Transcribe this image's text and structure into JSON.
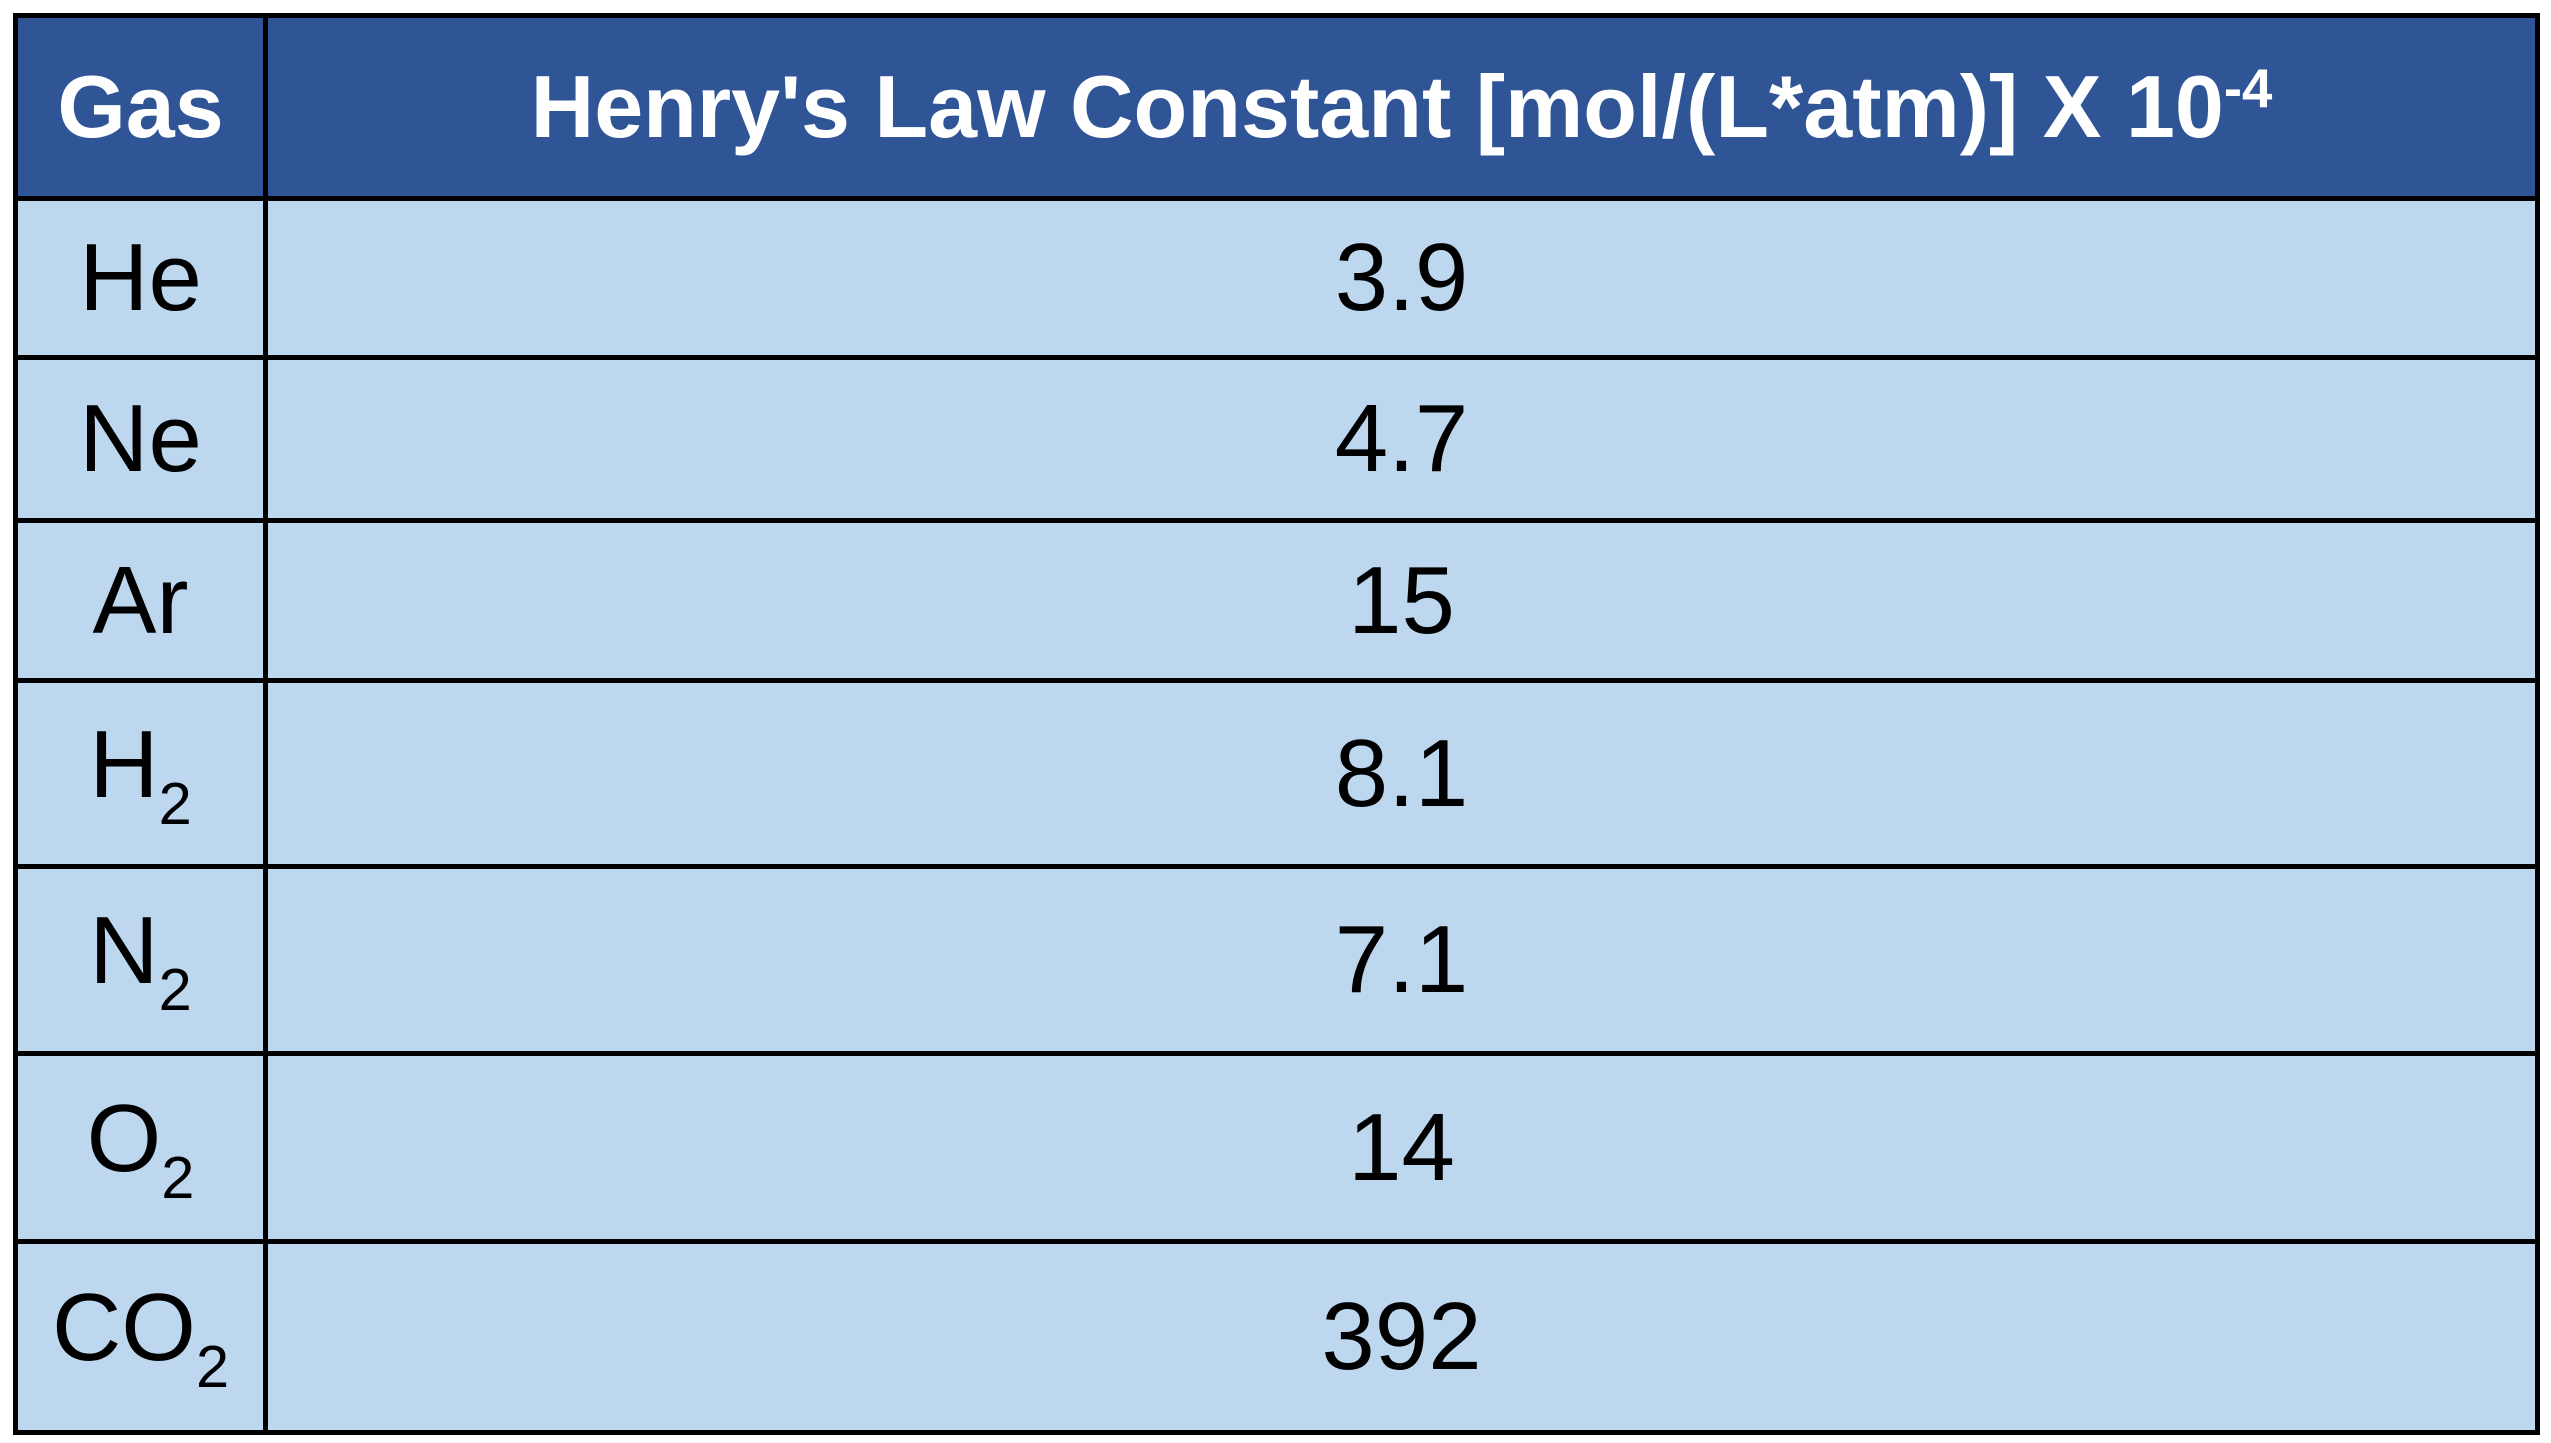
{
  "table": {
    "header": [
      {
        "text": "Gas"
      },
      {
        "text": "Henry's Law Constant [mol/(L*atm)] X 10",
        "sup": "-4"
      }
    ],
    "rows": [
      [
        {
          "text": "He"
        },
        "3.9"
      ],
      [
        {
          "text": "Ne"
        },
        "4.7"
      ],
      [
        {
          "text": "Ar"
        },
        "15"
      ],
      [
        {
          "text": "H",
          "sub": "2"
        },
        "8.1"
      ],
      [
        {
          "text": "N",
          "sub": "2"
        },
        "7.1"
      ],
      [
        {
          "text": "O",
          "sub": "2"
        },
        "14"
      ],
      [
        {
          "text": "CO",
          "sub": "2"
        },
        "392"
      ]
    ]
  }
}
